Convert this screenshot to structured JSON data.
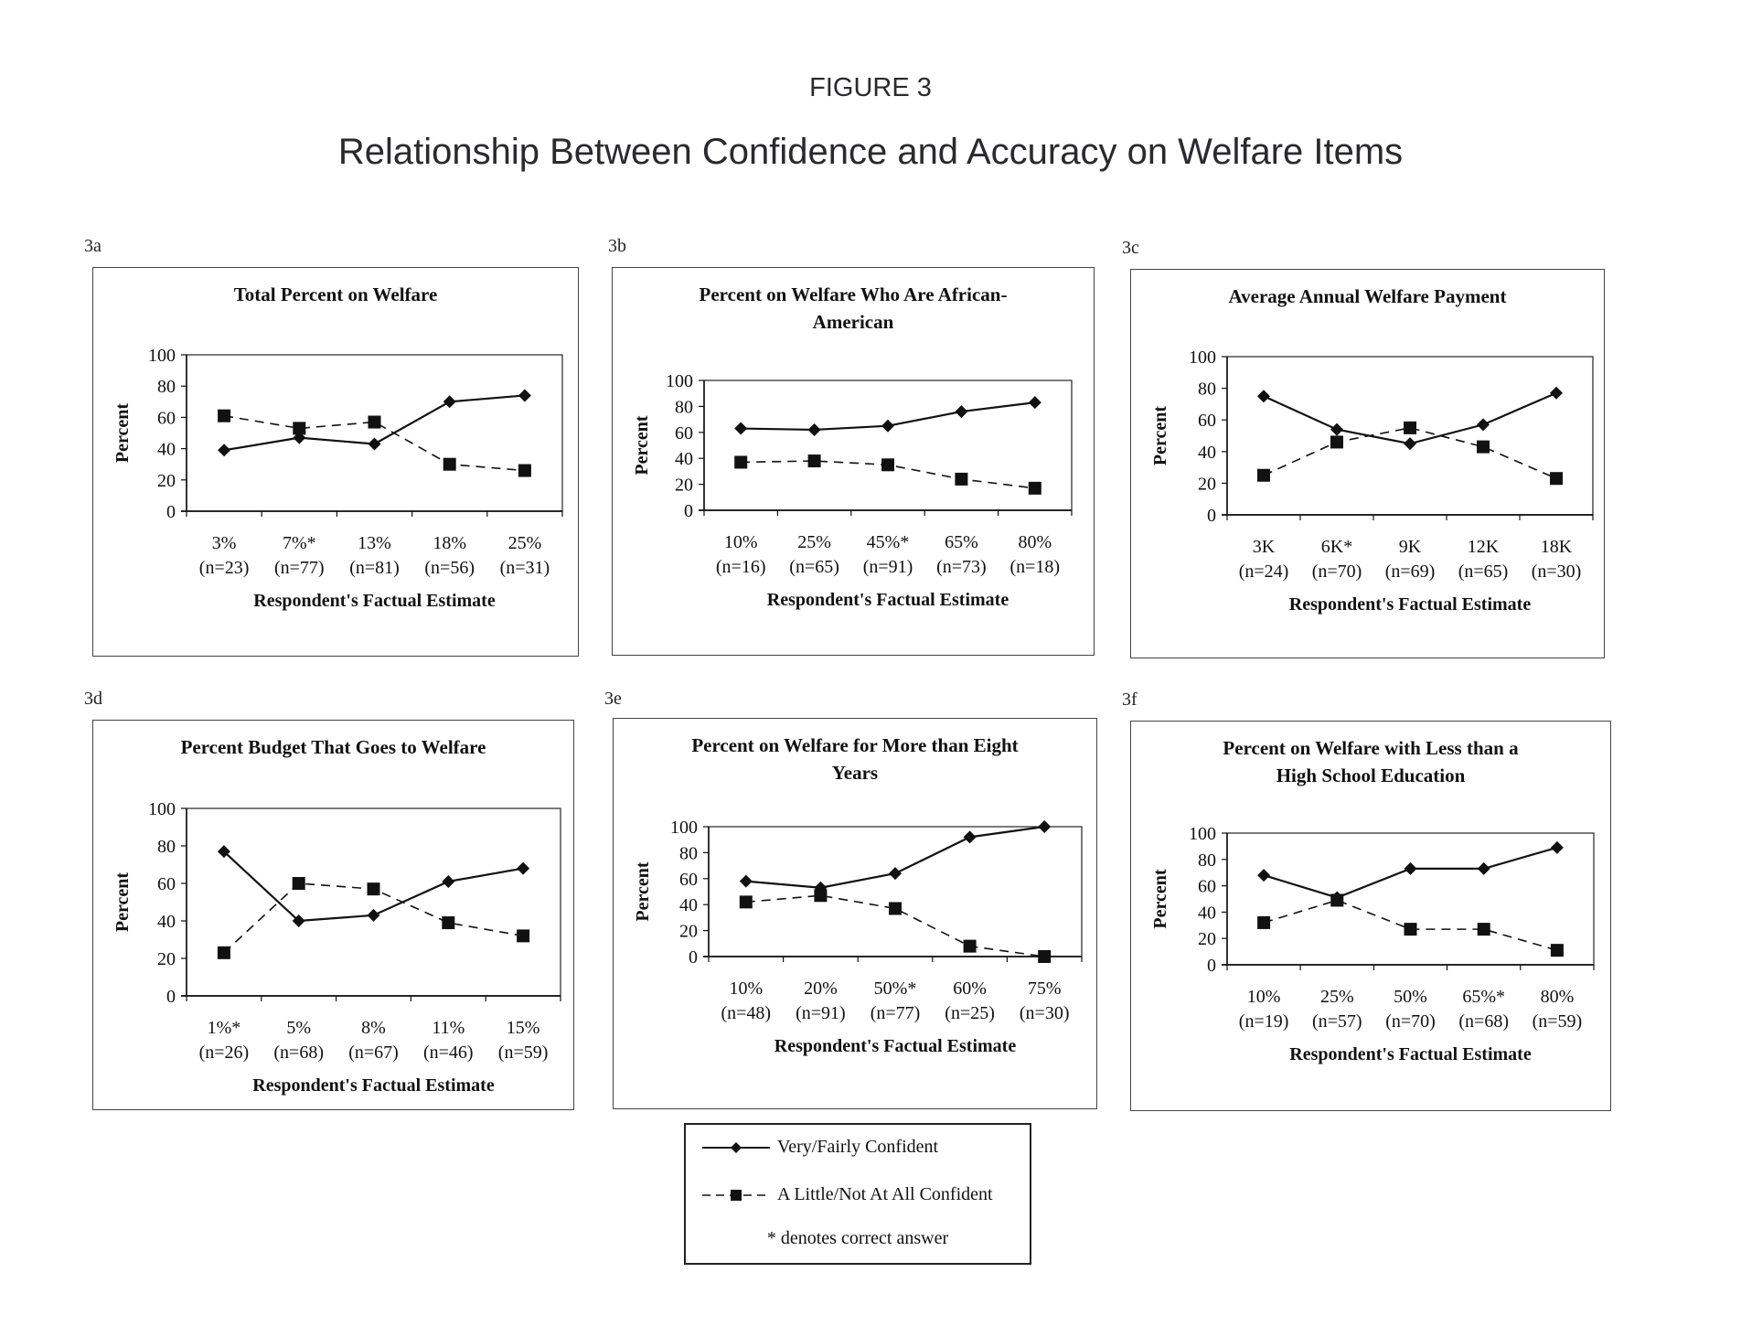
{
  "figure": {
    "number": "FIGURE 3",
    "title": "Relationship Between Confidence and Accuracy on Welfare Items"
  },
  "legend": {
    "series": [
      {
        "name": "Very/Fairly Confident",
        "style": "solid",
        "marker": "diamond"
      },
      {
        "name": "A Little/Not At All Confident",
        "style": "dashed",
        "marker": "square"
      }
    ],
    "note": "* denotes correct answer"
  },
  "chart_data": [
    {
      "id": "3a",
      "type": "line",
      "title": "Total Percent on Welfare",
      "xlabel": "Respondent's Factual Estimate",
      "ylabel": "Percent",
      "ylim": [
        0,
        100
      ],
      "yticks": [
        0,
        20,
        40,
        60,
        80,
        100
      ],
      "categories": [
        "3%",
        "7%*",
        "13%",
        "18%",
        "25%"
      ],
      "n_labels": [
        "(n=23)",
        "(n=77)",
        "(n=81)",
        "(n=56)",
        "(n=31)"
      ],
      "series": [
        {
          "name": "Very/Fairly Confident",
          "values": [
            39,
            47,
            43,
            70,
            74
          ]
        },
        {
          "name": "A Little/Not At All Confident",
          "values": [
            61,
            53,
            57,
            30,
            26
          ]
        }
      ]
    },
    {
      "id": "3b",
      "type": "line",
      "title": "Percent on Welfare Who Are African-American",
      "title_lines": [
        "Percent on Welfare Who Are African-",
        "American"
      ],
      "xlabel": "Respondent's Factual Estimate",
      "ylabel": "Percent",
      "ylim": [
        0,
        100
      ],
      "yticks": [
        0,
        20,
        40,
        60,
        80,
        100
      ],
      "categories": [
        "10%",
        "25%",
        "45%*",
        "65%",
        "80%"
      ],
      "n_labels": [
        "(n=16)",
        "(n=65)",
        "(n=91)",
        "(n=73)",
        "(n=18)"
      ],
      "series": [
        {
          "name": "Very/Fairly Confident",
          "values": [
            63,
            62,
            65,
            76,
            83
          ]
        },
        {
          "name": "A Little/Not At All Confident",
          "values": [
            37,
            38,
            35,
            24,
            17
          ]
        }
      ]
    },
    {
      "id": "3c",
      "type": "line",
      "title": "Average Annual Welfare Payment",
      "xlabel": "Respondent's Factual Estimate",
      "ylabel": "Percent",
      "ylim": [
        0,
        100
      ],
      "yticks": [
        0,
        20,
        40,
        60,
        80,
        100
      ],
      "categories": [
        "3K",
        "6K*",
        "9K",
        "12K",
        "18K"
      ],
      "n_labels": [
        "(n=24)",
        "(n=70)",
        "(n=69)",
        "(n=65)",
        "(n=30)"
      ],
      "series": [
        {
          "name": "Very/Fairly Confident",
          "values": [
            75,
            54,
            45,
            57,
            77
          ]
        },
        {
          "name": "A Little/Not At All Confident",
          "values": [
            25,
            46,
            55,
            43,
            23
          ]
        }
      ]
    },
    {
      "id": "3d",
      "type": "line",
      "title": "Percent Budget That Goes to Welfare",
      "xlabel": "Respondent's Factual Estimate",
      "ylabel": "Percent",
      "ylim": [
        0,
        100
      ],
      "yticks": [
        0,
        20,
        40,
        60,
        80,
        100
      ],
      "categories": [
        "1%*",
        "5%",
        "8%",
        "11%",
        "15%"
      ],
      "n_labels": [
        "(n=26)",
        "(n=68)",
        "(n=67)",
        "(n=46)",
        "(n=59)"
      ],
      "series": [
        {
          "name": "Very/Fairly Confident",
          "values": [
            77,
            40,
            43,
            61,
            68
          ]
        },
        {
          "name": "A Little/Not At All Confident",
          "values": [
            23,
            60,
            57,
            39,
            32
          ]
        }
      ]
    },
    {
      "id": "3e",
      "type": "line",
      "title": "Percent on Welfare for More than Eight Years",
      "title_lines": [
        "Percent on Welfare for More than Eight",
        "Years"
      ],
      "xlabel": "Respondent's Factual Estimate",
      "ylabel": "Percent",
      "ylim": [
        0,
        100
      ],
      "yticks": [
        0,
        20,
        40,
        60,
        80,
        100
      ],
      "categories": [
        "10%",
        "20%",
        "50%*",
        "60%",
        "75%"
      ],
      "n_labels": [
        "(n=48)",
        "(n=91)",
        "(n=77)",
        "(n=25)",
        "(n=30)"
      ],
      "series": [
        {
          "name": "Very/Fairly Confident",
          "values": [
            58,
            53,
            64,
            92,
            100
          ]
        },
        {
          "name": "A Little/Not At All Confident",
          "values": [
            42,
            47,
            37,
            8,
            0
          ]
        }
      ]
    },
    {
      "id": "3f",
      "type": "line",
      "title": "Percent on Welfare with Less than a High School Education",
      "title_lines": [
        "Percent on Welfare with Less than a",
        "High School Education"
      ],
      "xlabel": "Respondent's Factual Estimate",
      "ylabel": "Percent",
      "ylim": [
        0,
        100
      ],
      "yticks": [
        0,
        20,
        40,
        60,
        80,
        100
      ],
      "categories": [
        "10%",
        "25%",
        "50%",
        "65%*",
        "80%"
      ],
      "n_labels": [
        "(n=19)",
        "(n=57)",
        "(n=70)",
        "(n=68)",
        "(n=59)"
      ],
      "series": [
        {
          "name": "Very/Fairly Confident",
          "values": [
            68,
            51,
            73,
            73,
            89
          ]
        },
        {
          "name": "A Little/Not At All Confident",
          "values": [
            32,
            49,
            27,
            27,
            11
          ]
        }
      ]
    }
  ]
}
